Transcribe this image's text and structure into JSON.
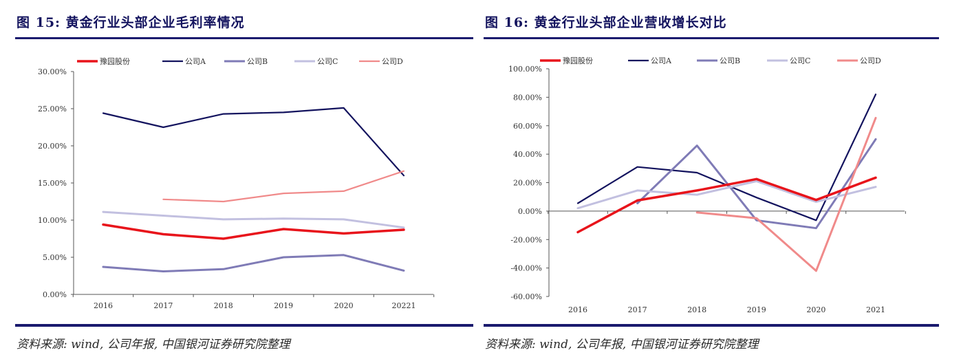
{
  "panels": [
    {
      "title": "图  15: 黄金行业头部企业毛利率情况",
      "source": "资料来源: wind, 公司年报, 中国银河证券研究院整理"
    },
    {
      "title": "图  16: 黄金行业头部企业营收增长对比",
      "source": "资料来源: wind, 公司年报, 中国银河证券研究院整理"
    }
  ],
  "chart_data": [
    {
      "type": "line",
      "title": "图  15: 黄金行业头部企业毛利率情况",
      "categories": [
        "2016",
        "2017",
        "2018",
        "2019",
        "2020",
        "20221"
      ],
      "ylim": [
        0,
        30
      ],
      "yticks": [
        0,
        5,
        10,
        15,
        20,
        25,
        30
      ],
      "ytick_labels": [
        "0.00%",
        "5.00%",
        "10.00%",
        "15.00%",
        "20.00%",
        "25.00%",
        "30.00%"
      ],
      "legend_position": "top",
      "grid": false,
      "series": [
        {
          "name": "豫园股份",
          "color": "#e8141b",
          "width": 3.5,
          "values": [
            9.4,
            8.1,
            7.5,
            8.8,
            8.2,
            8.7
          ]
        },
        {
          "name": "公司A",
          "color": "#13135e",
          "width": 2.2,
          "values": [
            24.4,
            22.5,
            24.3,
            24.5,
            25.1,
            16.0
          ]
        },
        {
          "name": "公司B",
          "color": "#7f7bb6",
          "width": 3,
          "values": [
            3.7,
            3.1,
            3.4,
            5.0,
            5.3,
            3.2
          ]
        },
        {
          "name": "公司C",
          "color": "#c2c0e0",
          "width": 3,
          "values": [
            11.1,
            10.6,
            10.1,
            10.2,
            10.1,
            9.0
          ]
        },
        {
          "name": "公司D",
          "color": "#f08a8a",
          "width": 2.2,
          "values": [
            null,
            12.8,
            12.5,
            13.6,
            13.9,
            16.6
          ]
        }
      ]
    },
    {
      "type": "line",
      "title": "图  16: 黄金行业头部企业营收增长对比",
      "categories": [
        "2016",
        "2017",
        "2018",
        "2019",
        "2020",
        "2021"
      ],
      "ylim": [
        -60,
        100
      ],
      "yticks": [
        -60,
        -40,
        -20,
        0,
        20,
        40,
        60,
        80,
        100
      ],
      "ytick_labels": [
        "-60.00%",
        "-40.00%",
        "-20.00%",
        "0.00%",
        "20.00%",
        "40.00%",
        "60.00%",
        "80.00%",
        "100.00%"
      ],
      "legend_position": "top",
      "grid": false,
      "series": [
        {
          "name": "豫园股份",
          "color": "#e8141b",
          "width": 3.5,
          "values": [
            -14.8,
            7.5,
            14.5,
            22.5,
            7.8,
            23.5
          ]
        },
        {
          "name": "公司A",
          "color": "#13135e",
          "width": 2.2,
          "values": [
            5.5,
            31.0,
            27.0,
            9.5,
            -6.5,
            82.0
          ]
        },
        {
          "name": "公司B",
          "color": "#7f7bb6",
          "width": 3,
          "values": [
            null,
            5.5,
            46.0,
            -6.5,
            -12.0,
            50.5
          ]
        },
        {
          "name": "公司C",
          "color": "#c2c0e0",
          "width": 3,
          "values": [
            2.0,
            14.5,
            11.5,
            21.0,
            6.5,
            17.0
          ]
        },
        {
          "name": "公司D",
          "color": "#f08a8a",
          "width": 3,
          "values": [
            null,
            null,
            -1.0,
            -5.0,
            -42.0,
            65.5
          ]
        }
      ]
    }
  ]
}
